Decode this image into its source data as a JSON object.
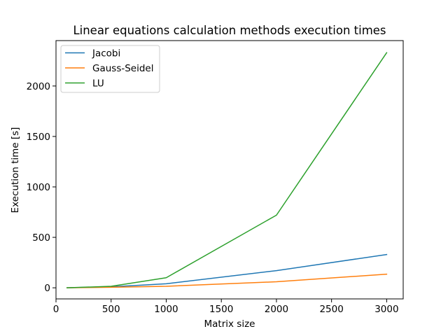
{
  "chart_data": {
    "type": "line",
    "title": "Linear equations calculation methods execution times",
    "xlabel": "Matrix size",
    "ylabel": "Execution time [s]",
    "xlim": [
      0,
      3150
    ],
    "ylim": [
      -110,
      2450
    ],
    "xticks": [
      0,
      500,
      1000,
      1500,
      2000,
      2500,
      3000
    ],
    "yticks": [
      0,
      500,
      1000,
      1500,
      2000
    ],
    "legend_position": "upper-left",
    "grid": false,
    "x": [
      100,
      500,
      1000,
      2000,
      3000
    ],
    "series": [
      {
        "name": "Jacobi",
        "color": "#1f77b4",
        "values": [
          0,
          10,
          40,
          170,
          330
        ]
      },
      {
        "name": "Gauss-Seidel",
        "color": "#ff7f0e",
        "values": [
          0,
          5,
          15,
          60,
          135
        ]
      },
      {
        "name": "LU",
        "color": "#2ca02c",
        "values": [
          0,
          15,
          100,
          720,
          2330
        ]
      }
    ]
  }
}
